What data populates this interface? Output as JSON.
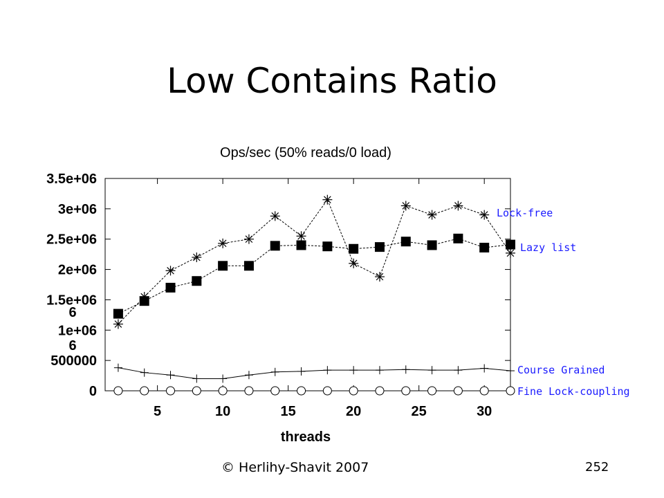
{
  "slide": {
    "title": "Low Contains Ratio",
    "footer_left": "© Herlihy-Shavit 2007",
    "footer_right": "252"
  },
  "chart_data": {
    "type": "line",
    "title": "Ops/sec (50% reads/0 load)",
    "xlabel": "threads",
    "ylabel": "",
    "xlim": [
      1,
      32
    ],
    "ylim": [
      0,
      3500000
    ],
    "x_ticks": [
      5,
      10,
      15,
      20,
      25,
      30
    ],
    "x_tick_labels": [
      "5",
      "10",
      "15",
      "20",
      "25",
      "30"
    ],
    "y_ticks": [
      0,
      500000,
      1000000,
      1500000,
      2000000,
      2500000,
      3000000,
      3500000
    ],
    "y_tick_labels": [
      "0",
      "500000",
      "1e+06",
      "1.5e+06",
      "2e+06",
      "2.5e+06",
      "3e+06",
      "3.5e+06"
    ],
    "extra_labels": [
      "6",
      "6"
    ],
    "grid": false,
    "legend": "right, labels placed beside each series' end",
    "x": [
      2,
      4,
      6,
      8,
      10,
      12,
      14,
      16,
      18,
      20,
      22,
      24,
      26,
      28,
      30,
      32
    ],
    "series": [
      {
        "name": "Lock-free",
        "marker": "asterisk",
        "color": "#1a1aff",
        "values": [
          1100000,
          1550000,
          1980000,
          2200000,
          2430000,
          2500000,
          2880000,
          2550000,
          3150000,
          2100000,
          1880000,
          3050000,
          2900000,
          3050000,
          2900000,
          2270000
        ]
      },
      {
        "name": "Lazy list",
        "marker": "filled-square",
        "color": "#1a1aff",
        "values": [
          1270000,
          1480000,
          1700000,
          1810000,
          2060000,
          2060000,
          2390000,
          2400000,
          2380000,
          2340000,
          2370000,
          2460000,
          2400000,
          2510000,
          2360000,
          2410000
        ]
      },
      {
        "name": "Course Grained",
        "marker": "plus",
        "color": "#1a1aff",
        "values": [
          380000,
          300000,
          260000,
          200000,
          200000,
          260000,
          310000,
          320000,
          340000,
          340000,
          340000,
          350000,
          340000,
          340000,
          370000,
          330000
        ]
      },
      {
        "name": "Fine Lock-coupling",
        "marker": "open-circle",
        "color": "#1a1aff",
        "values": [
          0,
          0,
          0,
          0,
          0,
          0,
          0,
          0,
          0,
          0,
          0,
          0,
          0,
          0,
          0,
          0
        ]
      }
    ]
  }
}
